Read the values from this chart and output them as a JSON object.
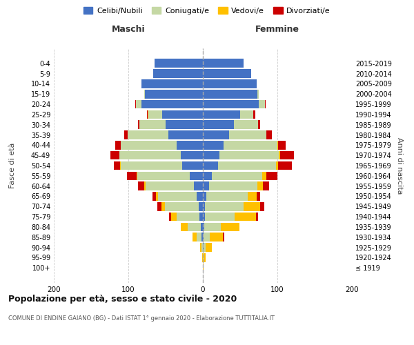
{
  "age_groups": [
    "100+",
    "95-99",
    "90-94",
    "85-89",
    "80-84",
    "75-79",
    "70-74",
    "65-69",
    "60-64",
    "55-59",
    "50-54",
    "45-49",
    "40-44",
    "35-39",
    "30-34",
    "25-29",
    "20-24",
    "15-19",
    "10-14",
    "5-9",
    "0-4"
  ],
  "birth_years": [
    "≤ 1919",
    "1920-1924",
    "1925-1929",
    "1930-1934",
    "1935-1939",
    "1940-1944",
    "1945-1949",
    "1950-1954",
    "1955-1959",
    "1960-1964",
    "1965-1969",
    "1970-1974",
    "1975-1979",
    "1980-1984",
    "1985-1989",
    "1990-1994",
    "1995-1999",
    "2000-2004",
    "2005-2009",
    "2010-2014",
    "2015-2019"
  ],
  "colors": {
    "celibi": "#4472c4",
    "coniugati": "#c5d8a4",
    "vedovi": "#ffc000",
    "divorziati": "#cc0000"
  },
  "m_cel": [
    0,
    0,
    0,
    2,
    3,
    5,
    6,
    8,
    12,
    18,
    28,
    30,
    35,
    46,
    50,
    55,
    82,
    78,
    82,
    67,
    65
  ],
  "m_con": [
    0,
    0,
    2,
    6,
    17,
    30,
    45,
    52,
    65,
    70,
    82,
    82,
    75,
    55,
    35,
    18,
    8,
    1,
    0,
    0,
    0
  ],
  "m_ved": [
    0,
    1,
    2,
    6,
    10,
    8,
    5,
    3,
    2,
    1,
    1,
    0,
    0,
    0,
    0,
    1,
    0,
    0,
    0,
    0,
    0
  ],
  "m_div": [
    0,
    0,
    0,
    0,
    0,
    2,
    5,
    5,
    8,
    13,
    8,
    12,
    8,
    5,
    2,
    1,
    1,
    0,
    0,
    0,
    0
  ],
  "f_cel": [
    0,
    0,
    1,
    1,
    2,
    3,
    3,
    5,
    8,
    12,
    20,
    22,
    28,
    35,
    42,
    50,
    75,
    73,
    72,
    65,
    55
  ],
  "f_con": [
    0,
    1,
    3,
    8,
    22,
    40,
    52,
    55,
    65,
    68,
    78,
    80,
    72,
    50,
    32,
    18,
    8,
    2,
    0,
    0,
    0
  ],
  "f_ved": [
    1,
    3,
    8,
    18,
    25,
    28,
    22,
    12,
    8,
    5,
    3,
    2,
    1,
    0,
    0,
    0,
    0,
    0,
    0,
    0,
    0
  ],
  "f_div": [
    0,
    0,
    0,
    2,
    0,
    3,
    5,
    5,
    8,
    15,
    18,
    18,
    10,
    8,
    3,
    2,
    1,
    0,
    0,
    0,
    0
  ],
  "title": "Popolazione per età, sesso e stato civile - 2020",
  "subtitle": "COMUNE DI ENDINE GAIANO (BG) - Dati ISTAT 1° gennaio 2020 - Elaborazione TUTTITALIA.IT",
  "xlabel_left": "Maschi",
  "xlabel_right": "Femmine",
  "ylabel_left": "Fasce di età",
  "ylabel_right": "Anni di nascita",
  "xlim": 200,
  "legend_labels": [
    "Celibi/Nubili",
    "Coniugati/e",
    "Vedovi/e",
    "Divorziati/e"
  ],
  "bg_color": "#f5f5f5"
}
